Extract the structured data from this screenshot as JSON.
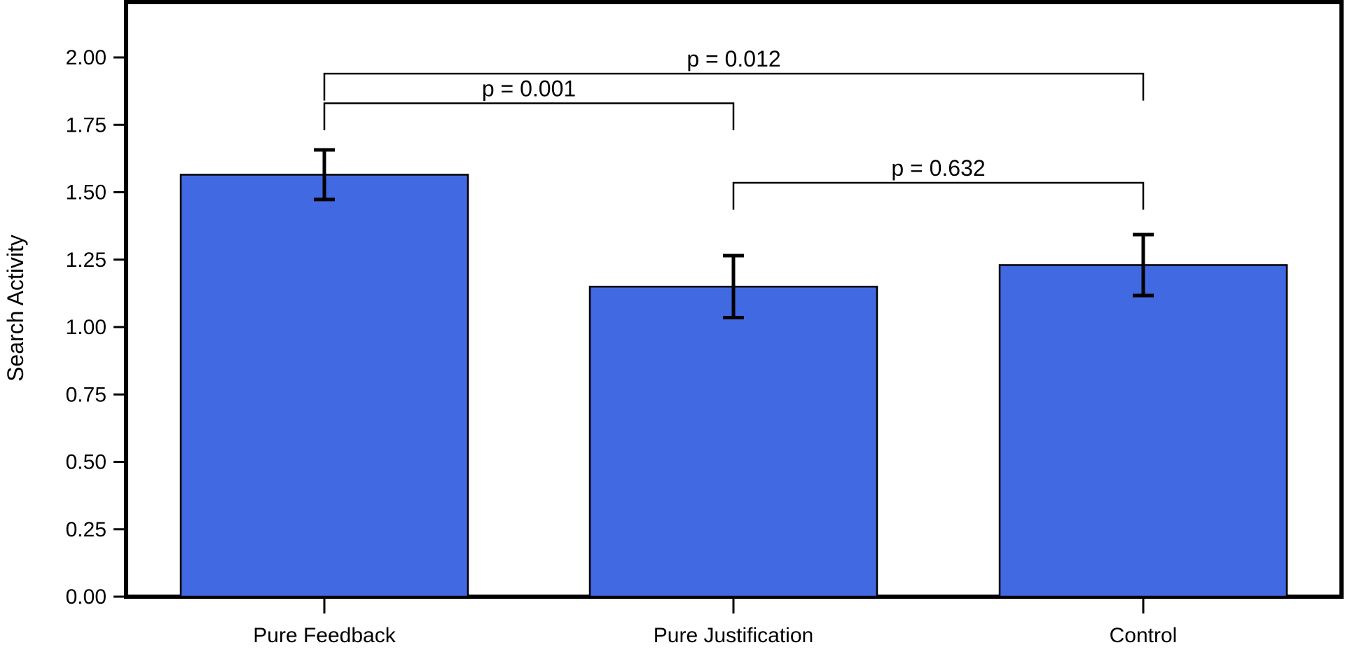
{
  "chart_data": {
    "type": "bar",
    "title": "",
    "xlabel": "",
    "ylabel": "Search Activity",
    "categories": [
      "Pure Feedback",
      "Pure Justification",
      "Control"
    ],
    "values": [
      1.565,
      1.15,
      1.23
    ],
    "error": [
      0.092,
      0.115,
      0.113
    ],
    "ylim": [
      0,
      2.2
    ],
    "yticks": [
      0.0,
      0.25,
      0.5,
      0.75,
      1.0,
      1.25,
      1.5,
      1.75,
      2.0
    ],
    "ytick_labels": [
      "0.00",
      "0.25",
      "0.50",
      "0.75",
      "1.00",
      "1.25",
      "1.50",
      "1.75",
      "2.00"
    ],
    "grid": false,
    "colors": {
      "bar": "#4169e1",
      "bar_edge": "#000000",
      "axis": "#000000",
      "error_bar": "#000000"
    },
    "annotations": [
      {
        "label": "p = 0.012",
        "from": "Pure Feedback",
        "to": "Control",
        "y": 1.94,
        "tip": 0.1
      },
      {
        "label": "p = 0.001",
        "from": "Pure Feedback",
        "to": "Pure Justification",
        "y": 1.83,
        "tip": 0.1
      },
      {
        "label": "p = 0.632",
        "from": "Pure Justification",
        "to": "Control",
        "y": 1.535,
        "tip": 0.1
      }
    ]
  }
}
